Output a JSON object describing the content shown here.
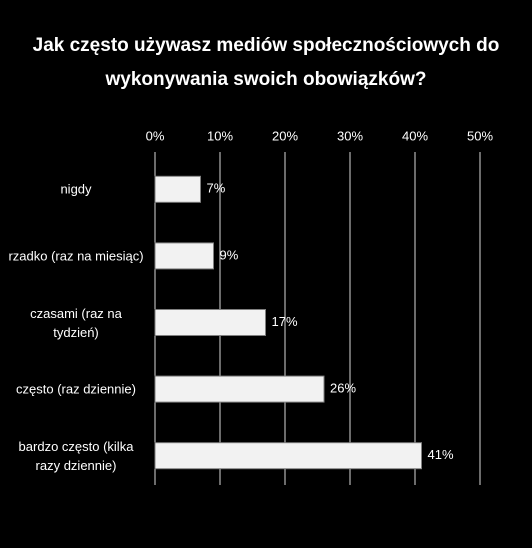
{
  "chart_data": {
    "type": "bar",
    "orientation": "horizontal",
    "title": "Jak często używasz mediów społecznościowych do wykonywania swoich obowiązków?",
    "categories": [
      "nigdy",
      "rzadko (raz na miesiąc)",
      "czasami (raz na tydzień)",
      "często (raz dziennie)",
      "bardzo często (kilka razy dziennie)"
    ],
    "values": [
      7,
      9,
      17,
      26,
      41
    ],
    "value_labels": [
      "7%",
      "9%",
      "17%",
      "26%",
      "41%"
    ],
    "color": "#f2f2f2",
    "xlim": [
      0,
      50
    ],
    "xticks": [
      {
        "value": 0,
        "label": "0%"
      },
      {
        "value": 10,
        "label": "10%"
      },
      {
        "value": 20,
        "label": "20%"
      },
      {
        "value": 30,
        "label": "30%"
      },
      {
        "value": 40,
        "label": "40%"
      },
      {
        "value": 50,
        "label": "50%"
      }
    ],
    "grid": true
  }
}
